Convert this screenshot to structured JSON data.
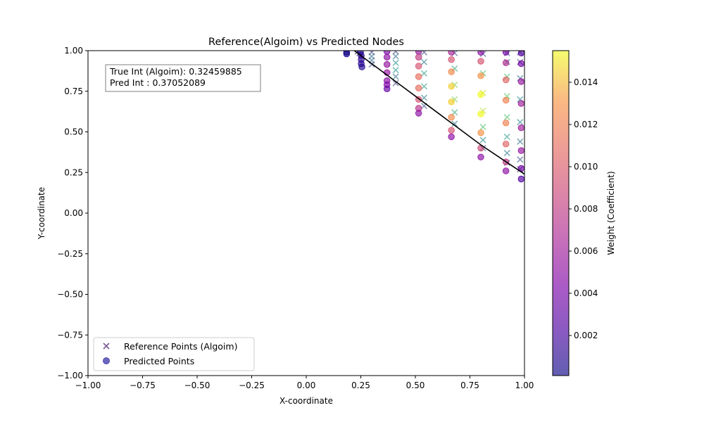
{
  "chart_data": {
    "type": "scatter",
    "title": "Reference(Algoim) vs Predicted Nodes",
    "xlabel": "X-coordinate",
    "ylabel": "Y-coordinate",
    "xlim": [
      -1.0,
      1.0
    ],
    "ylim": [
      -1.0,
      1.0
    ],
    "xticks": [
      "−1.00",
      "−0.75",
      "−0.50",
      "−0.25",
      "0.00",
      "0.25",
      "0.50",
      "0.75",
      "1.00"
    ],
    "yticks": [
      "−1.00",
      "−0.75",
      "−0.50",
      "−0.25",
      "0.00",
      "0.25",
      "0.50",
      "0.75",
      "1.00"
    ],
    "grid": false,
    "legend_position": "lower-left",
    "annotation": {
      "line1": "True Int (Algoim): 0.32459885",
      "line2": "Pred Int : 0.37052089"
    },
    "colorbar": {
      "label": "Weight (Coefficient)",
      "colormap": "plasma",
      "range": [
        0.0001,
        0.0155
      ],
      "ticks": [
        "0.002",
        "0.004",
        "0.006",
        "0.008",
        "0.010",
        "0.012",
        "0.014"
      ]
    },
    "curve": {
      "color": "#000000",
      "points": [
        [
          0.22,
          1.0
        ],
        [
          0.3,
          0.92
        ],
        [
          0.4,
          0.82
        ],
        [
          0.5,
          0.72
        ],
        [
          0.6,
          0.62
        ],
        [
          0.7,
          0.52
        ],
        [
          0.8,
          0.42
        ],
        [
          0.9,
          0.33
        ],
        [
          1.0,
          0.24
        ]
      ]
    },
    "series": [
      {
        "name": "Reference Points (Algoim)",
        "marker": "x",
        "colormap": "viridis",
        "points": [
          {
            "x": 0.236,
            "y": 0.995,
            "w": 0.15
          },
          {
            "x": 0.244,
            "y": 0.985,
            "w": 0.2
          },
          {
            "x": 0.252,
            "y": 0.975,
            "w": 0.15
          },
          {
            "x": 0.3,
            "y": 0.99,
            "w": 0.2
          },
          {
            "x": 0.3,
            "y": 0.965,
            "w": 0.35
          },
          {
            "x": 0.3,
            "y": 0.94,
            "w": 0.35
          },
          {
            "x": 0.3,
            "y": 0.915,
            "w": 0.2
          },
          {
            "x": 0.41,
            "y": 0.995,
            "w": 0.2
          },
          {
            "x": 0.41,
            "y": 0.965,
            "w": 0.35
          },
          {
            "x": 0.41,
            "y": 0.925,
            "w": 0.5
          },
          {
            "x": 0.41,
            "y": 0.88,
            "w": 0.5
          },
          {
            "x": 0.41,
            "y": 0.84,
            "w": 0.35
          },
          {
            "x": 0.41,
            "y": 0.8,
            "w": 0.2
          },
          {
            "x": 0.54,
            "y": 0.99,
            "w": 0.2
          },
          {
            "x": 0.54,
            "y": 0.93,
            "w": 0.4
          },
          {
            "x": 0.54,
            "y": 0.86,
            "w": 0.55
          },
          {
            "x": 0.54,
            "y": 0.78,
            "w": 0.55
          },
          {
            "x": 0.54,
            "y": 0.71,
            "w": 0.4
          },
          {
            "x": 0.54,
            "y": 0.66,
            "w": 0.25
          },
          {
            "x": 0.68,
            "y": 0.985,
            "w": 0.25
          },
          {
            "x": 0.68,
            "y": 0.89,
            "w": 0.6
          },
          {
            "x": 0.68,
            "y": 0.79,
            "w": 0.8
          },
          {
            "x": 0.68,
            "y": 0.7,
            "w": 0.8
          },
          {
            "x": 0.68,
            "y": 0.62,
            "w": 0.6
          },
          {
            "x": 0.68,
            "y": 0.55,
            "w": 0.4
          },
          {
            "x": 0.81,
            "y": 0.98,
            "w": 0.3
          },
          {
            "x": 0.81,
            "y": 0.86,
            "w": 0.7
          },
          {
            "x": 0.81,
            "y": 0.74,
            "w": 0.9
          },
          {
            "x": 0.81,
            "y": 0.63,
            "w": 0.9
          },
          {
            "x": 0.81,
            "y": 0.53,
            "w": 0.7
          },
          {
            "x": 0.81,
            "y": 0.45,
            "w": 0.45
          },
          {
            "x": 0.81,
            "y": 0.4,
            "w": 0.25
          },
          {
            "x": 0.92,
            "y": 0.985,
            "w": 0.25
          },
          {
            "x": 0.92,
            "y": 0.93,
            "w": 0.4
          },
          {
            "x": 0.92,
            "y": 0.84,
            "w": 0.7
          },
          {
            "x": 0.92,
            "y": 0.72,
            "w": 0.75
          },
          {
            "x": 0.92,
            "y": 0.59,
            "w": 0.7
          },
          {
            "x": 0.92,
            "y": 0.47,
            "w": 0.55
          },
          {
            "x": 0.92,
            "y": 0.37,
            "w": 0.4
          },
          {
            "x": 0.92,
            "y": 0.31,
            "w": 0.25
          },
          {
            "x": 0.98,
            "y": 0.99,
            "w": 0.15
          },
          {
            "x": 0.98,
            "y": 0.93,
            "w": 0.25
          },
          {
            "x": 0.98,
            "y": 0.83,
            "w": 0.35
          },
          {
            "x": 0.98,
            "y": 0.7,
            "w": 0.45
          },
          {
            "x": 0.98,
            "y": 0.56,
            "w": 0.45
          },
          {
            "x": 0.98,
            "y": 0.44,
            "w": 0.35
          },
          {
            "x": 0.98,
            "y": 0.33,
            "w": 0.25
          },
          {
            "x": 0.98,
            "y": 0.27,
            "w": 0.15
          }
        ]
      },
      {
        "name": "Predicted Points",
        "marker": "o",
        "colormap": "plasma",
        "points": [
          {
            "x": 0.185,
            "y": 0.99,
            "w": 0.0004
          },
          {
            "x": 0.185,
            "y": 0.98,
            "w": 0.0004
          },
          {
            "x": 0.248,
            "y": 0.99,
            "w": 0.0008
          },
          {
            "x": 0.252,
            "y": 0.97,
            "w": 0.001
          },
          {
            "x": 0.252,
            "y": 0.945,
            "w": 0.0012
          },
          {
            "x": 0.252,
            "y": 0.92,
            "w": 0.001
          },
          {
            "x": 0.255,
            "y": 0.9,
            "w": 0.0008
          },
          {
            "x": 0.37,
            "y": 0.995,
            "w": 0.0045
          },
          {
            "x": 0.37,
            "y": 0.96,
            "w": 0.005
          },
          {
            "x": 0.37,
            "y": 0.915,
            "w": 0.0055
          },
          {
            "x": 0.37,
            "y": 0.865,
            "w": 0.0055
          },
          {
            "x": 0.37,
            "y": 0.815,
            "w": 0.005
          },
          {
            "x": 0.37,
            "y": 0.79,
            "w": 0.0045
          },
          {
            "x": 0.37,
            "y": 0.765,
            "w": 0.0035
          },
          {
            "x": 0.515,
            "y": 0.995,
            "w": 0.0055
          },
          {
            "x": 0.515,
            "y": 0.96,
            "w": 0.008
          },
          {
            "x": 0.515,
            "y": 0.905,
            "w": 0.0095
          },
          {
            "x": 0.515,
            "y": 0.84,
            "w": 0.011
          },
          {
            "x": 0.515,
            "y": 0.77,
            "w": 0.011
          },
          {
            "x": 0.515,
            "y": 0.7,
            "w": 0.0095
          },
          {
            "x": 0.515,
            "y": 0.645,
            "w": 0.0075
          },
          {
            "x": 0.515,
            "y": 0.615,
            "w": 0.005
          },
          {
            "x": 0.665,
            "y": 0.99,
            "w": 0.0065
          },
          {
            "x": 0.665,
            "y": 0.945,
            "w": 0.0095
          },
          {
            "x": 0.665,
            "y": 0.87,
            "w": 0.0125
          },
          {
            "x": 0.665,
            "y": 0.78,
            "w": 0.0145
          },
          {
            "x": 0.665,
            "y": 0.685,
            "w": 0.0145
          },
          {
            "x": 0.665,
            "y": 0.59,
            "w": 0.0125
          },
          {
            "x": 0.665,
            "y": 0.51,
            "w": 0.0095
          },
          {
            "x": 0.665,
            "y": 0.47,
            "w": 0.005
          },
          {
            "x": 0.8,
            "y": 0.99,
            "w": 0.005
          },
          {
            "x": 0.8,
            "y": 0.935,
            "w": 0.0095
          },
          {
            "x": 0.8,
            "y": 0.845,
            "w": 0.013
          },
          {
            "x": 0.8,
            "y": 0.73,
            "w": 0.0155
          },
          {
            "x": 0.8,
            "y": 0.61,
            "w": 0.0155
          },
          {
            "x": 0.8,
            "y": 0.495,
            "w": 0.013
          },
          {
            "x": 0.8,
            "y": 0.4,
            "w": 0.009
          },
          {
            "x": 0.8,
            "y": 0.345,
            "w": 0.005
          },
          {
            "x": 0.915,
            "y": 0.99,
            "w": 0.004
          },
          {
            "x": 0.915,
            "y": 0.925,
            "w": 0.007
          },
          {
            "x": 0.915,
            "y": 0.82,
            "w": 0.0105
          },
          {
            "x": 0.915,
            "y": 0.695,
            "w": 0.012
          },
          {
            "x": 0.915,
            "y": 0.555,
            "w": 0.012
          },
          {
            "x": 0.915,
            "y": 0.425,
            "w": 0.0105
          },
          {
            "x": 0.915,
            "y": 0.315,
            "w": 0.008
          },
          {
            "x": 0.915,
            "y": 0.26,
            "w": 0.005
          },
          {
            "x": 0.985,
            "y": 0.985,
            "w": 0.0025
          },
          {
            "x": 0.985,
            "y": 0.92,
            "w": 0.004
          },
          {
            "x": 0.985,
            "y": 0.81,
            "w": 0.0055
          },
          {
            "x": 0.985,
            "y": 0.675,
            "w": 0.006
          },
          {
            "x": 0.985,
            "y": 0.525,
            "w": 0.006
          },
          {
            "x": 0.985,
            "y": 0.385,
            "w": 0.0055
          },
          {
            "x": 0.985,
            "y": 0.275,
            "w": 0.004
          },
          {
            "x": 0.985,
            "y": 0.21,
            "w": 0.0025
          }
        ]
      }
    ]
  },
  "colors": {
    "curve": "#000000",
    "legend_reference_marker": "#7b5b92",
    "legend_predicted_marker": "#3a34a8"
  }
}
